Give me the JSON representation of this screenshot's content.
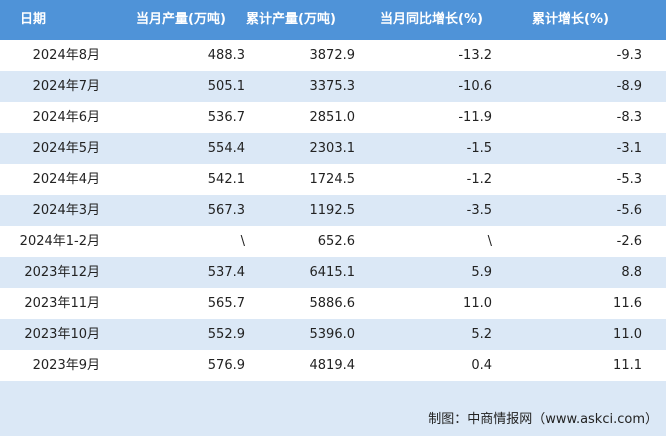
{
  "table": {
    "headers": [
      "日期",
      "当月产量(万吨)",
      "累计产量(万吨)",
      "当月同比增长(%)",
      "累计增长(%)"
    ],
    "rows": [
      [
        "2024年8月",
        "488.3",
        "3872.9",
        "-13.2",
        "-9.3"
      ],
      [
        "2024年7月",
        "505.1",
        "3375.3",
        "-10.6",
        "-8.9"
      ],
      [
        "2024年6月",
        "536.7",
        "2851.0",
        "-11.9",
        "-8.3"
      ],
      [
        "2024年5月",
        "554.4",
        "2303.1",
        "-1.5",
        "-3.1"
      ],
      [
        "2024年4月",
        "542.1",
        "1724.5",
        "-1.2",
        "-5.3"
      ],
      [
        "2024年3月",
        "567.3",
        "1192.5",
        "-3.5",
        "-5.6"
      ],
      [
        "2024年1-2月",
        "\\",
        "652.6",
        "\\",
        "-2.6"
      ],
      [
        "2023年12月",
        "537.4",
        "6415.1",
        "5.9",
        "8.8"
      ],
      [
        "2023年11月",
        "565.7",
        "5886.6",
        "11.0",
        "11.6"
      ],
      [
        "2023年10月",
        "552.9",
        "5396.0",
        "5.2",
        "11.0"
      ],
      [
        "2023年9月",
        "576.9",
        "4819.4",
        "0.4",
        "11.1"
      ]
    ]
  },
  "footer": {
    "source": "制图：中商情报网（www.askci.com）"
  }
}
